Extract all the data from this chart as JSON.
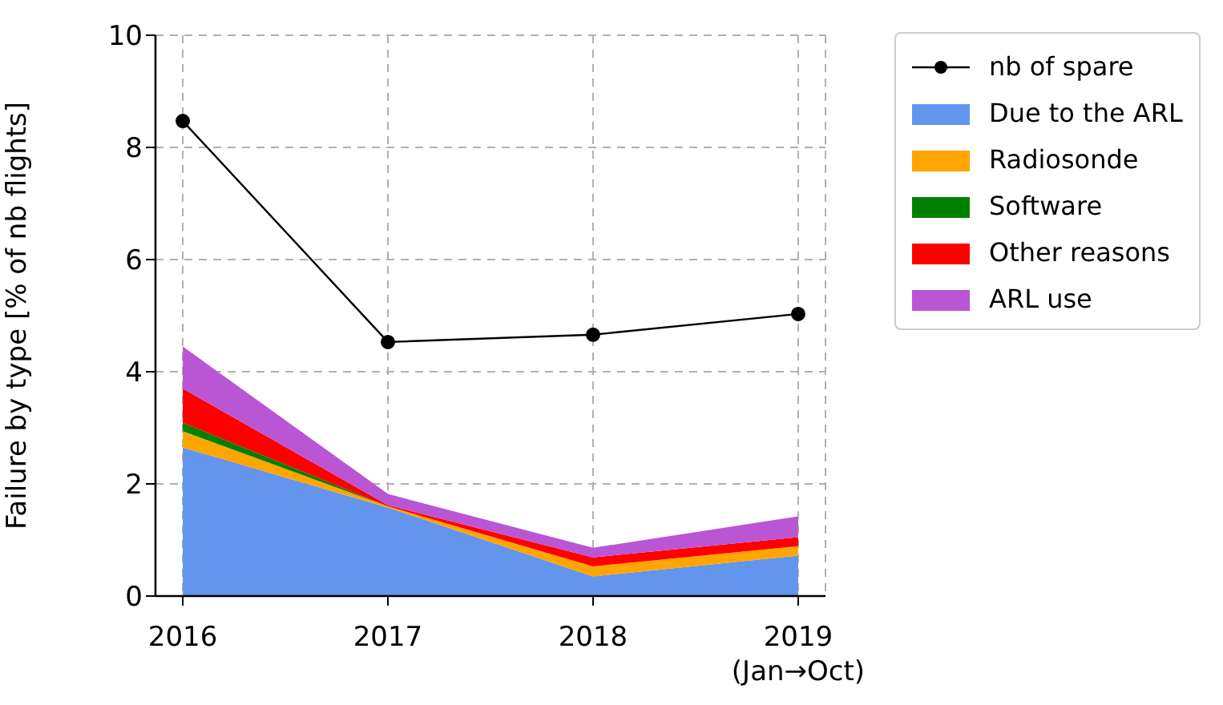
{
  "chart_data": {
    "type": "area",
    "stacked": true,
    "ylabel": "Failure by type [% of nb flights]",
    "categories": [
      "2016",
      "2017",
      "2018",
      "2019\n(Jan→Oct)"
    ],
    "series": [
      {
        "name": "nb of spare",
        "type": "line",
        "color": "#000000",
        "marker": "circle",
        "values": [
          8.47,
          4.53,
          4.66,
          5.03
        ]
      },
      {
        "name": "Due to the ARL",
        "color": "#6495ed",
        "values": [
          2.65,
          1.58,
          0.35,
          0.72
        ]
      },
      {
        "name": "Radiosonde",
        "color": "#ffa500",
        "values": [
          0.29,
          0.02,
          0.18,
          0.17
        ]
      },
      {
        "name": "Software",
        "color": "#008000",
        "values": [
          0.15,
          0,
          0,
          0
        ]
      },
      {
        "name": "Other reasons",
        "color": "#ff0000",
        "values": [
          0.61,
          0.02,
          0.16,
          0.16
        ]
      },
      {
        "name": "ARL use",
        "color": "#ba55d3",
        "values": [
          0.75,
          0.2,
          0.17,
          0.37
        ]
      }
    ],
    "ylim": [
      0,
      10
    ],
    "yticks": [
      0,
      2,
      4,
      6,
      8,
      10
    ],
    "grid": true,
    "legend": "top right"
  }
}
